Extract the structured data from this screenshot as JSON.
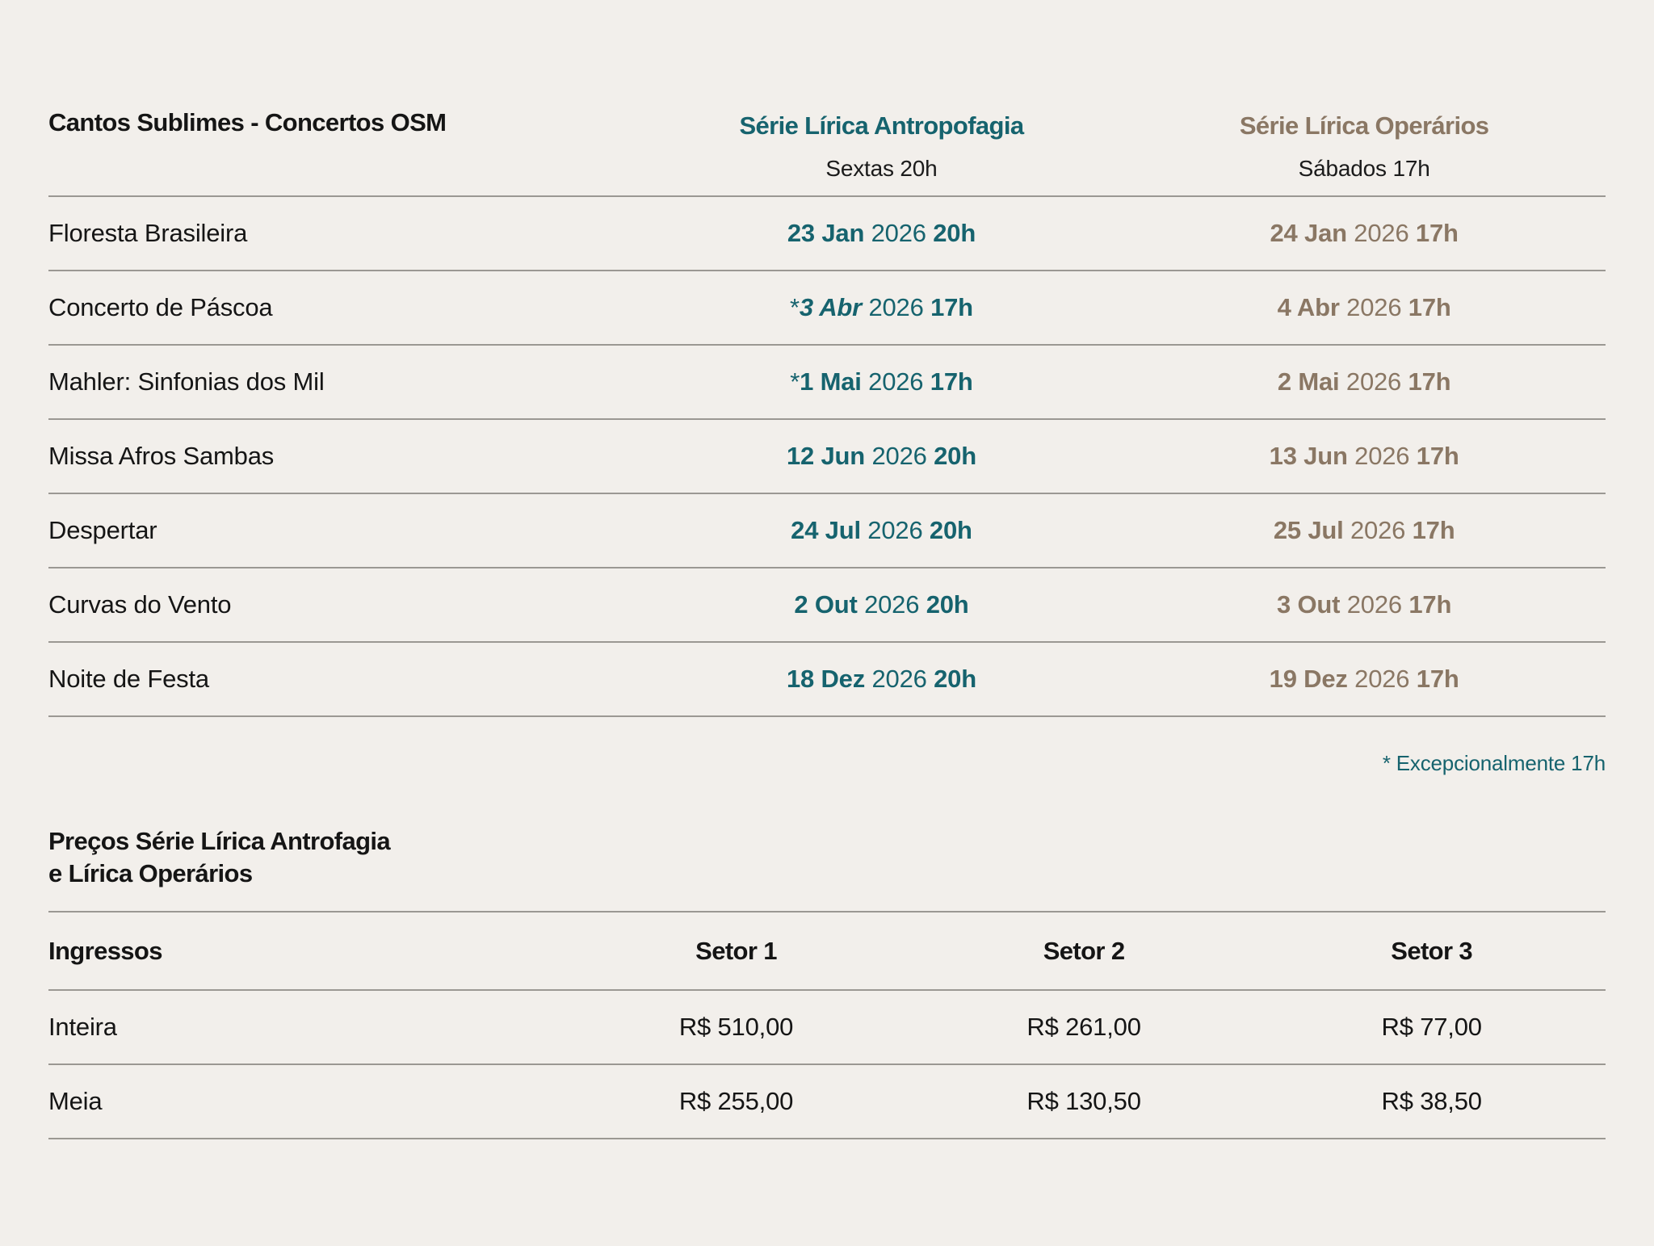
{
  "page": {
    "title": "Cantos Sublimes - Concertos OSM"
  },
  "colors": {
    "background": "#f2efeb",
    "text": "#151515",
    "antropofagia_teal": "#16636e",
    "operarios_taupe": "#8a7764",
    "divider": "#9b9893"
  },
  "schedule": {
    "columns": [
      {
        "label": "Série Lírica Antropofagia",
        "subtitle": "Sextas 20h"
      },
      {
        "label": "Série Lírica Operários",
        "subtitle": "Sábados 17h"
      }
    ],
    "rows": [
      {
        "program": "Floresta Brasileira",
        "a": {
          "prefix": "",
          "day": "23 Jan",
          "italic": false,
          "year": "2026",
          "time": "20h"
        },
        "o": {
          "day": "24 Jan",
          "year": "2026",
          "time": "17h"
        }
      },
      {
        "program": "Concerto de Páscoa",
        "a": {
          "prefix": "*",
          "day": "3 Abr",
          "italic": true,
          "year": "2026",
          "time": "17h"
        },
        "o": {
          "day": "4 Abr",
          "year": "2026",
          "time": "17h"
        }
      },
      {
        "program": "Mahler: Sinfonias dos Mil",
        "a": {
          "prefix": "*",
          "day": "1 Mai",
          "italic": false,
          "year": "2026",
          "time": "17h"
        },
        "o": {
          "day": "2 Mai",
          "year": "2026",
          "time": "17h"
        }
      },
      {
        "program": "Missa Afros Sambas",
        "a": {
          "prefix": "",
          "day": "12 Jun",
          "italic": false,
          "year": "2026",
          "time": "20h"
        },
        "o": {
          "day": "13 Jun",
          "year": "2026",
          "time": "17h"
        }
      },
      {
        "program": "Despertar",
        "a": {
          "prefix": "",
          "day": "24 Jul",
          "italic": false,
          "year": "2026",
          "time": "20h"
        },
        "o": {
          "day": "25 Jul",
          "year": "2026",
          "time": "17h"
        }
      },
      {
        "program": "Curvas do Vento",
        "a": {
          "prefix": "",
          "day": "2 Out",
          "italic": false,
          "year": "2026",
          "time": "20h"
        },
        "o": {
          "day": "3 Out",
          "year": "2026",
          "time": "17h"
        }
      },
      {
        "program": "Noite de Festa",
        "a": {
          "prefix": "",
          "day": "18 Dez",
          "italic": false,
          "year": "2026",
          "time": "20h"
        },
        "o": {
          "day": "19 Dez",
          "year": "2026",
          "time": "17h"
        }
      }
    ],
    "footnote": "* Excepcionalmente 17h"
  },
  "prices": {
    "heading": [
      "Preços Série Lírica Antrofagia",
      "e Lírica Operários"
    ],
    "header": {
      "label": "Ingressos",
      "sectors": [
        "Setor 1",
        "Setor 2",
        "Setor 3"
      ]
    },
    "rows": [
      {
        "label": "Inteira",
        "values": [
          "R$ 510,00",
          "R$ 261,00",
          "R$ 77,00"
        ]
      },
      {
        "label": "Meia",
        "values": [
          "R$ 255,00",
          "R$ 130,50",
          "R$ 38,50"
        ]
      }
    ]
  }
}
